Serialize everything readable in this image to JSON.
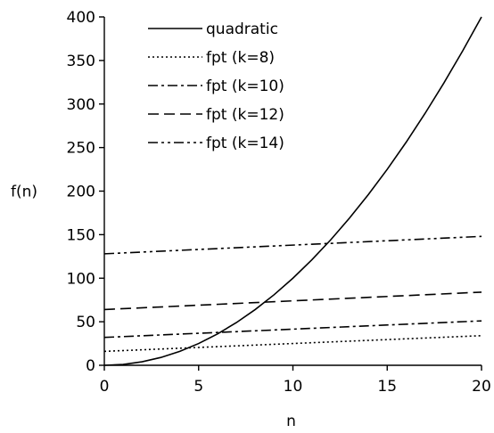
{
  "chart_data": {
    "type": "line",
    "title": "",
    "xlabel": "n",
    "ylabel": "f(n)",
    "xlim": [
      0,
      20
    ],
    "ylim": [
      0,
      400
    ],
    "x_ticks": [
      0,
      5,
      10,
      15,
      20
    ],
    "y_ticks": [
      0,
      50,
      100,
      150,
      200,
      250,
      300,
      350,
      400
    ],
    "grid": false,
    "legend_position": "top-left",
    "series": [
      {
        "name": "quadratic",
        "style": "solid",
        "x": [
          0,
          1,
          2,
          3,
          4,
          5,
          6,
          7,
          8,
          9,
          10,
          11,
          12,
          13,
          14,
          15,
          16,
          17,
          18,
          19,
          20
        ],
        "y": [
          0,
          1,
          4,
          9,
          16,
          25,
          36,
          49,
          64,
          81,
          100,
          121,
          144,
          169,
          196,
          225,
          256,
          289,
          324,
          361,
          400
        ]
      },
      {
        "name": "fpt (k=8)",
        "style": "dotted",
        "x": [
          0,
          20
        ],
        "y": [
          16,
          34
        ]
      },
      {
        "name": "fpt (k=10)",
        "style": "dash-dot",
        "x": [
          0,
          20
        ],
        "y": [
          32,
          51
        ]
      },
      {
        "name": "fpt (k=12)",
        "style": "dashed",
        "x": [
          0,
          20
        ],
        "y": [
          64,
          84
        ]
      },
      {
        "name": "fpt (k=14)",
        "style": "dash-dot-dot",
        "x": [
          0,
          20
        ],
        "y": [
          128,
          148
        ]
      }
    ]
  }
}
